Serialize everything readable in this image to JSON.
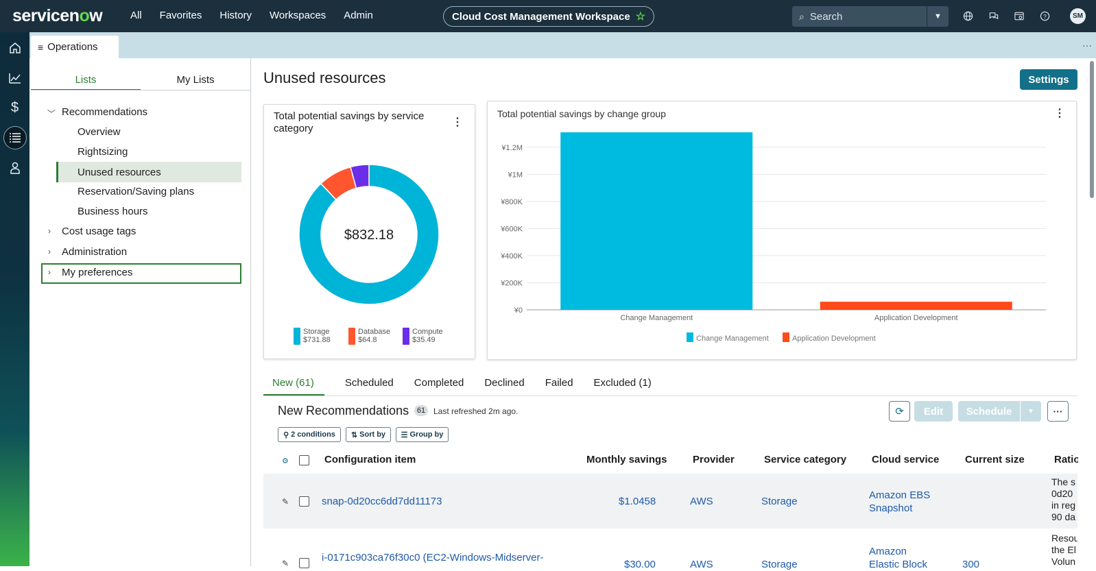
{
  "topbar": {
    "logo": {
      "prefix": "servicen",
      "o": "o",
      "suffix": "w"
    },
    "nav": [
      "All",
      "Favorites",
      "History",
      "Workspaces",
      "Admin"
    ],
    "workspace": "Cloud Cost Management Workspace",
    "search_placeholder": "Search",
    "avatar": "SM",
    "icons": [
      "globe-icon",
      "chat-icon",
      "inbox-icon",
      "help-icon"
    ]
  },
  "tab": {
    "label": "Operations"
  },
  "sidebar": {
    "tabs": [
      "Lists",
      "My Lists"
    ],
    "selected_tab": "Lists",
    "tree": {
      "recommendations": "Recommendations",
      "children": [
        "Overview",
        "Rightsizing",
        "Unused resources",
        "Reservation/Saving plans",
        "Business hours"
      ],
      "cost_usage_tags": "Cost usage tags",
      "administration": "Administration",
      "my_preferences": "My preferences"
    }
  },
  "main": {
    "title": "Unused resources",
    "settings": "Settings"
  },
  "card1": {
    "title_line1": "Total potential savings by service",
    "title_line2": "category",
    "center_value": "$832.18",
    "legend": [
      {
        "name": "Storage",
        "value": "$731.88",
        "color": "#00b4d8"
      },
      {
        "name": "Database",
        "value": "$64.8",
        "color": "#ff5630"
      },
      {
        "name": "Compute",
        "value": "$35.49",
        "color": "#6a2ee8"
      }
    ]
  },
  "card2": {
    "title": "Total potential savings by change group",
    "legend": [
      "Change Management",
      "Application Development"
    ]
  },
  "chart_data": [
    {
      "type": "pie",
      "title": "Total potential savings by service category",
      "categories": [
        "Storage",
        "Database",
        "Compute"
      ],
      "values": [
        731.88,
        64.8,
        35.49
      ],
      "colors": [
        "#00b4d8",
        "#ff5630",
        "#6a2ee8"
      ],
      "center_label": "$832.18",
      "donut": true
    },
    {
      "type": "bar",
      "title": "Total potential savings by change group",
      "categories": [
        "Change Management",
        "Application Development"
      ],
      "values": [
        1310000,
        60000
      ],
      "colors": [
        "#00bbe0",
        "#ff4a1c"
      ],
      "ylim": [
        0,
        1300000
      ],
      "yticks": [
        0,
        200000,
        400000,
        600000,
        800000,
        1000000,
        1200000
      ],
      "ytick_labels": [
        "¥0",
        "¥200K",
        "¥400K",
        "¥600K",
        "¥800K",
        "¥1M",
        "¥1.2M"
      ],
      "grid": true,
      "legend": "bottom"
    }
  ],
  "subtabs": [
    "New (61)",
    "Scheduled",
    "Completed",
    "Declined",
    "Failed",
    "Excluded (1)"
  ],
  "list": {
    "title": "New Recommendations",
    "count": "61",
    "refreshed": "Last refreshed 2m ago.",
    "edit": "Edit",
    "schedule": "Schedule",
    "chips": [
      "2 conditions",
      "Sort by",
      "Group by"
    ],
    "headers": [
      "Configuration item",
      "Monthly savings",
      "Provider",
      "Service category",
      "Cloud service",
      "Current size",
      "Ratio"
    ],
    "rows": [
      {
        "ci": "snap-0d20cc6dd7dd11173",
        "savings": "$1.0458",
        "provider": "AWS",
        "category": "Storage",
        "service_1": "Amazon EBS",
        "service_2": "Snapshot",
        "size": "",
        "ratio": [
          "The s",
          "0d20",
          "in reg",
          "90 da"
        ]
      },
      {
        "ci": "i-0171c903ca76f30c0 (EC2-Windows-Midserver-",
        "savings": "$30.00",
        "provider": "AWS",
        "category": "Storage",
        "service_1": "Amazon",
        "service_2": "Elastic Block",
        "size": "300",
        "ratio": [
          "Resou",
          "the El",
          "Volun"
        ]
      }
    ]
  }
}
